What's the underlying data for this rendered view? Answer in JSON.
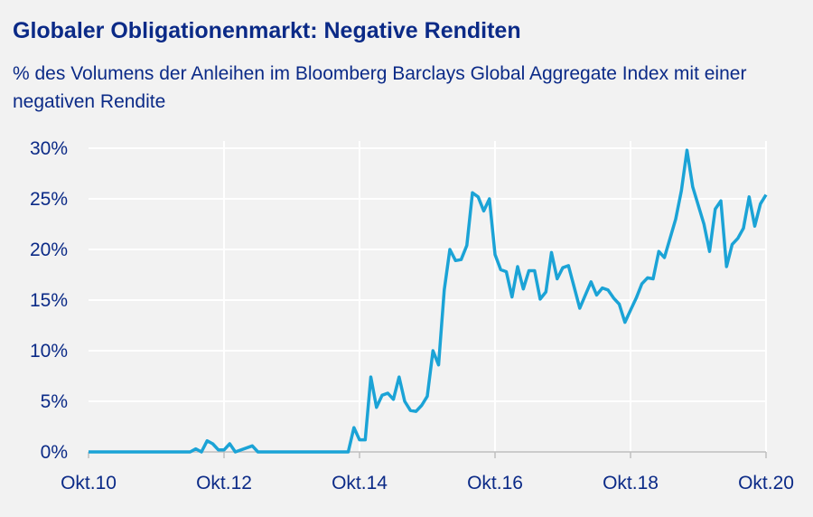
{
  "chart_data": {
    "type": "line",
    "title": "Globaler Obligationenmarkt: Negative Renditen",
    "subtitle": "% des Volumens der Anleihen im Bloomberg Barclays Global Aggregate Index mit einer negativen Rendite",
    "xlabel": "",
    "ylabel": "",
    "ylim": [
      0,
      30
    ],
    "xlim": [
      "2010-10",
      "2020-10"
    ],
    "yticks": [
      "0%",
      "5%",
      "10%",
      "15%",
      "20%",
      "25%",
      "30%"
    ],
    "ytick_values": [
      0,
      5,
      10,
      15,
      20,
      25,
      30
    ],
    "xticks": [
      "Okt.10",
      "Okt.12",
      "Okt.14",
      "Okt.16",
      "Okt.18",
      "Okt.20"
    ],
    "xtick_values": [
      "2010-10",
      "2012-10",
      "2014-10",
      "2016-10",
      "2018-10",
      "2020-10"
    ],
    "grid": true,
    "line_color": "#1ba3d6",
    "series": [
      {
        "x": [
          "2010-10",
          "2012-04",
          "2012-05",
          "2012-06",
          "2012-07",
          "2012-08",
          "2012-09",
          "2012-10",
          "2012-11",
          "2012-12",
          "2013-03",
          "2013-04",
          "2014-08",
          "2014-09",
          "2014-10",
          "2014-11",
          "2014-12",
          "2015-01",
          "2015-02",
          "2015-03",
          "2015-04",
          "2015-05",
          "2015-06",
          "2015-07",
          "2015-08",
          "2015-09",
          "2015-10",
          "2015-11",
          "2015-12",
          "2016-01",
          "2016-02",
          "2016-03",
          "2016-04",
          "2016-05",
          "2016-06",
          "2016-07",
          "2016-08",
          "2016-09",
          "2016-10",
          "2016-11",
          "2016-12",
          "2017-01",
          "2017-02",
          "2017-03",
          "2017-04",
          "2017-05",
          "2017-06",
          "2017-07",
          "2017-08",
          "2017-09",
          "2017-10",
          "2017-11",
          "2018-01",
          "2018-02",
          "2018-03",
          "2018-04",
          "2018-05",
          "2018-06",
          "2018-07",
          "2018-08",
          "2018-09",
          "2018-10",
          "2018-11",
          "2018-12",
          "2019-01",
          "2019-02",
          "2019-03",
          "2019-04",
          "2019-06",
          "2019-07",
          "2019-08",
          "2019-09",
          "2019-11",
          "2019-12",
          "2020-01",
          "2020-02",
          "2020-03",
          "2020-04",
          "2020-05",
          "2020-06",
          "2020-07",
          "2020-08",
          "2020-09",
          "2020-10"
        ],
        "values": [
          0,
          0,
          0.3,
          0,
          1.1,
          0.8,
          0.2,
          0.2,
          0.8,
          0,
          0.6,
          0,
          0,
          2.4,
          1.2,
          1.2,
          7.4,
          4.4,
          5.6,
          5.8,
          5.2,
          7.4,
          5.0,
          4.1,
          4.0,
          4.6,
          5.5,
          10.0,
          8.6,
          16.0,
          20.0,
          18.9,
          19.0,
          20.4,
          25.6,
          25.2,
          23.8,
          25.0,
          19.5,
          18.0,
          17.8,
          15.3,
          18.3,
          16.1,
          17.9,
          17.9,
          15.1,
          15.8,
          19.7,
          17.1,
          18.2,
          18.4,
          14.2,
          15.5,
          16.8,
          15.5,
          16.2,
          16.0,
          15.2,
          14.6,
          12.8,
          14.0,
          15.2,
          16.6,
          17.2,
          17.1,
          19.8,
          19.2,
          23.0,
          25.8,
          29.8,
          26.2,
          22.5,
          19.8,
          24.0,
          24.8,
          18.3,
          20.5,
          21.1,
          22.1,
          25.2,
          22.3,
          24.5,
          25.4
        ]
      }
    ]
  }
}
